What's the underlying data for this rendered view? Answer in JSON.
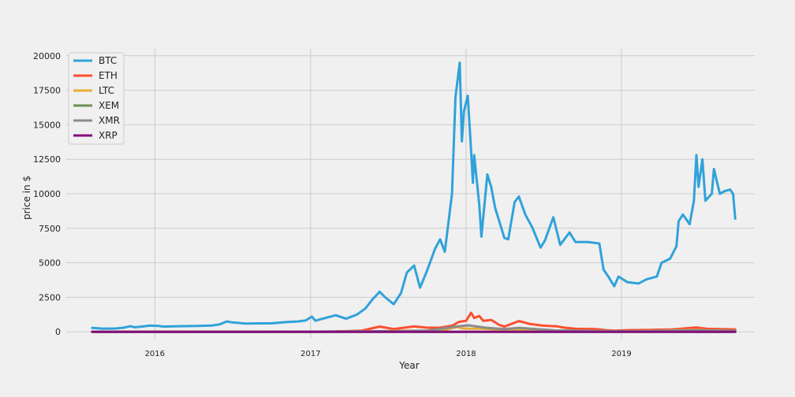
{
  "chart_data": {
    "type": "line",
    "title": "",
    "xlabel": "Year",
    "ylabel": "price in $",
    "xlim": [
      "2015-06-07",
      "2019-11-10"
    ],
    "ylim": [
      -500,
      20500
    ],
    "x_ticks": [
      "2016-01-01",
      "2017-01-01",
      "2018-01-01",
      "2019-01-01"
    ],
    "x_tick_labels": [
      "2016",
      "2017",
      "2018",
      "2019"
    ],
    "y_ticks": [
      0,
      2500,
      5000,
      7500,
      10000,
      12500,
      15000,
      17500,
      20000
    ],
    "y_tick_labels": [
      "0",
      "2500",
      "5000",
      "7500",
      "10000",
      "12500",
      "15000",
      "17500",
      "20000"
    ],
    "grid": true,
    "legend_position": "top-left",
    "series": [
      {
        "name": "BTC",
        "color": "#30a2da",
        "points": [
          [
            "2015-08-07",
            280
          ],
          [
            "2015-09-01",
            230
          ],
          [
            "2015-10-01",
            240
          ],
          [
            "2015-10-20",
            300
          ],
          [
            "2015-11-04",
            400
          ],
          [
            "2015-11-15",
            330
          ],
          [
            "2015-12-01",
            380
          ],
          [
            "2015-12-20",
            450
          ],
          [
            "2016-01-10",
            430
          ],
          [
            "2016-01-20",
            380
          ],
          [
            "2016-02-15",
            400
          ],
          [
            "2016-03-15",
            415
          ],
          [
            "2016-04-15",
            430
          ],
          [
            "2016-05-15",
            460
          ],
          [
            "2016-06-01",
            540
          ],
          [
            "2016-06-18",
            750
          ],
          [
            "2016-07-01",
            680
          ],
          [
            "2016-08-01",
            600
          ],
          [
            "2016-09-01",
            610
          ],
          [
            "2016-10-01",
            615
          ],
          [
            "2016-11-01",
            700
          ],
          [
            "2016-12-01",
            750
          ],
          [
            "2016-12-20",
            820
          ],
          [
            "2017-01-04",
            1100
          ],
          [
            "2017-01-12",
            800
          ],
          [
            "2017-02-01",
            970
          ],
          [
            "2017-03-01",
            1200
          ],
          [
            "2017-03-25",
            950
          ],
          [
            "2017-04-20",
            1250
          ],
          [
            "2017-05-10",
            1700
          ],
          [
            "2017-05-25",
            2300
          ],
          [
            "2017-06-12",
            2900
          ],
          [
            "2017-06-25",
            2500
          ],
          [
            "2017-07-15",
            2000
          ],
          [
            "2017-08-01",
            2800
          ],
          [
            "2017-08-15",
            4300
          ],
          [
            "2017-09-01",
            4800
          ],
          [
            "2017-09-15",
            3200
          ],
          [
            "2017-10-01",
            4400
          ],
          [
            "2017-10-20",
            6000
          ],
          [
            "2017-11-01",
            6700
          ],
          [
            "2017-11-12",
            5800
          ],
          [
            "2017-11-29",
            10000
          ],
          [
            "2017-12-07",
            17000
          ],
          [
            "2017-12-17",
            19500
          ],
          [
            "2017-12-22",
            13800
          ],
          [
            "2017-12-27",
            16000
          ],
          [
            "2018-01-05",
            17100
          ],
          [
            "2018-01-12",
            13500
          ],
          [
            "2018-01-17",
            10800
          ],
          [
            "2018-01-20",
            12800
          ],
          [
            "2018-02-01",
            9200
          ],
          [
            "2018-02-06",
            6900
          ],
          [
            "2018-02-20",
            11400
          ],
          [
            "2018-03-01",
            10500
          ],
          [
            "2018-03-10",
            9000
          ],
          [
            "2018-03-18",
            8200
          ],
          [
            "2018-04-01",
            6800
          ],
          [
            "2018-04-10",
            6700
          ],
          [
            "2018-04-25",
            9400
          ],
          [
            "2018-05-05",
            9800
          ],
          [
            "2018-05-20",
            8500
          ],
          [
            "2018-06-05",
            7600
          ],
          [
            "2018-06-25",
            6100
          ],
          [
            "2018-07-05",
            6600
          ],
          [
            "2018-07-25",
            8300
          ],
          [
            "2018-08-10",
            6300
          ],
          [
            "2018-09-01",
            7200
          ],
          [
            "2018-09-15",
            6500
          ],
          [
            "2018-10-15",
            6500
          ],
          [
            "2018-11-10",
            6400
          ],
          [
            "2018-11-20",
            4500
          ],
          [
            "2018-12-01",
            4000
          ],
          [
            "2018-12-15",
            3300
          ],
          [
            "2018-12-25",
            4000
          ],
          [
            "2019-01-15",
            3600
          ],
          [
            "2019-02-10",
            3500
          ],
          [
            "2019-03-01",
            3800
          ],
          [
            "2019-03-25",
            4000
          ],
          [
            "2019-04-05",
            5000
          ],
          [
            "2019-04-25",
            5300
          ],
          [
            "2019-05-10",
            6200
          ],
          [
            "2019-05-15",
            8000
          ],
          [
            "2019-05-25",
            8500
          ],
          [
            "2019-06-10",
            7800
          ],
          [
            "2019-06-20",
            9500
          ],
          [
            "2019-06-26",
            12800
          ],
          [
            "2019-07-01",
            10500
          ],
          [
            "2019-07-10",
            12500
          ],
          [
            "2019-07-17",
            9500
          ],
          [
            "2019-08-01",
            10000
          ],
          [
            "2019-08-06",
            11800
          ],
          [
            "2019-08-20",
            10000
          ],
          [
            "2019-09-01",
            10200
          ],
          [
            "2019-09-13",
            10300
          ],
          [
            "2019-09-20",
            10000
          ],
          [
            "2019-09-25",
            8200
          ]
        ]
      },
      {
        "name": "ETH",
        "color": "#fc4f30",
        "points": [
          [
            "2015-08-07",
            3
          ],
          [
            "2016-01-01",
            1
          ],
          [
            "2016-06-15",
            15
          ],
          [
            "2017-01-01",
            8
          ],
          [
            "2017-03-01",
            20
          ],
          [
            "2017-05-01",
            90
          ],
          [
            "2017-06-12",
            380
          ],
          [
            "2017-07-15",
            200
          ],
          [
            "2017-09-01",
            390
          ],
          [
            "2017-10-01",
            300
          ],
          [
            "2017-11-01",
            300
          ],
          [
            "2017-12-01",
            460
          ],
          [
            "2017-12-15",
            720
          ],
          [
            "2018-01-01",
            800
          ],
          [
            "2018-01-13",
            1380
          ],
          [
            "2018-01-20",
            1000
          ],
          [
            "2018-02-01",
            1150
          ],
          [
            "2018-02-10",
            800
          ],
          [
            "2018-03-01",
            860
          ],
          [
            "2018-03-20",
            500
          ],
          [
            "2018-04-01",
            380
          ],
          [
            "2018-05-05",
            780
          ],
          [
            "2018-06-01",
            560
          ],
          [
            "2018-07-01",
            450
          ],
          [
            "2018-08-01",
            400
          ],
          [
            "2018-08-20",
            300
          ],
          [
            "2018-09-15",
            220
          ],
          [
            "2018-11-01",
            200
          ],
          [
            "2018-11-25",
            120
          ],
          [
            "2018-12-15",
            85
          ],
          [
            "2019-01-15",
            120
          ],
          [
            "2019-03-01",
            135
          ],
          [
            "2019-05-01",
            170
          ],
          [
            "2019-06-25",
            310
          ],
          [
            "2019-07-20",
            220
          ],
          [
            "2019-09-25",
            170
          ]
        ]
      },
      {
        "name": "LTC",
        "color": "#e5ae38",
        "points": [
          [
            "2015-08-07",
            4
          ],
          [
            "2016-06-15",
            5
          ],
          [
            "2017-01-01",
            4
          ],
          [
            "2017-05-01",
            30
          ],
          [
            "2017-06-12",
            50
          ],
          [
            "2017-09-01",
            80
          ],
          [
            "2017-11-01",
            60
          ],
          [
            "2017-12-12",
            350
          ],
          [
            "2017-12-22",
            250
          ],
          [
            "2018-01-10",
            230
          ],
          [
            "2018-02-15",
            220
          ],
          [
            "2018-04-01",
            120
          ],
          [
            "2018-05-01",
            150
          ],
          [
            "2018-08-01",
            70
          ],
          [
            "2018-12-15",
            25
          ],
          [
            "2019-03-01",
            50
          ],
          [
            "2019-06-22",
            140
          ],
          [
            "2019-09-25",
            60
          ]
        ]
      },
      {
        "name": "XEM",
        "color": "#6d904f",
        "points": [
          [
            "2015-08-07",
            0.5
          ],
          [
            "2017-01-01",
            0.5
          ],
          [
            "2017-06-01",
            0.3
          ],
          [
            "2018-01-05",
            1.5
          ],
          [
            "2018-06-01",
            0.2
          ],
          [
            "2019-09-25",
            0.05
          ]
        ]
      },
      {
        "name": "XMR",
        "color": "#8b8b8b",
        "points": [
          [
            "2015-08-07",
            0.5
          ],
          [
            "2016-01-01",
            0.5
          ],
          [
            "2016-06-15",
            1
          ],
          [
            "2016-09-01",
            8
          ],
          [
            "2017-01-01",
            15
          ],
          [
            "2017-05-01",
            40
          ],
          [
            "2017-08-01",
            50
          ],
          [
            "2017-10-01",
            90
          ],
          [
            "2017-12-20",
            420
          ],
          [
            "2018-01-07",
            470
          ],
          [
            "2018-02-15",
            300
          ],
          [
            "2018-04-01",
            200
          ],
          [
            "2018-05-05",
            280
          ],
          [
            "2018-08-01",
            100
          ],
          [
            "2018-12-15",
            45
          ],
          [
            "2019-03-01",
            50
          ],
          [
            "2019-06-22",
            110
          ],
          [
            "2019-09-25",
            70
          ]
        ]
      },
      {
        "name": "XRP",
        "color": "#810f7c",
        "points": [
          [
            "2015-08-07",
            0.01
          ],
          [
            "2017-05-01",
            0.3
          ],
          [
            "2018-01-04",
            3.4
          ],
          [
            "2018-06-01",
            0.6
          ],
          [
            "2019-09-25",
            0.25
          ]
        ]
      }
    ]
  }
}
